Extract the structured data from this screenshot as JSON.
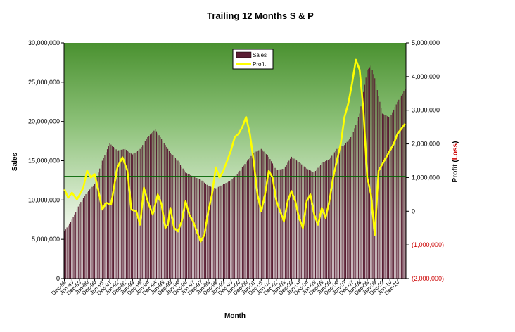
{
  "chart_data": {
    "type": "bar",
    "title": "Trailing 12 Months S & P",
    "xlabel": "Month",
    "ylabel": "Sales",
    "y2label": "Profit",
    "y2label_open": "Profit (",
    "y2label_loss": "Loss",
    "y2label_close": ")",
    "ylim": [
      0,
      30000000
    ],
    "y2lim": [
      -2000000,
      5000000
    ],
    "yticks": [
      "0",
      "5,000,000",
      "10,000,000",
      "15,000,000",
      "20,000,000",
      "25,000,000",
      "30,000,000"
    ],
    "y2ticks": [
      "(2,000,000)",
      "(1,000,000)",
      "0",
      "1,000,000",
      "2,000,000",
      "3,000,000",
      "4,000,000",
      "5,000,000"
    ],
    "x_tick_labels": [
      "Dec-88",
      "Jun-89",
      "Dec-89",
      "Jun-90",
      "Dec-90",
      "Jun-91",
      "Dec-91",
      "Jun-92",
      "Dec-92",
      "Jun-93",
      "Dec-93",
      "Jun-94",
      "Dec-94",
      "Jun-95",
      "Dec-95",
      "Jun-96",
      "Dec-96",
      "Jun-97",
      "Dec-97",
      "Jun-98",
      "Dec-98",
      "Jun-99",
      "Dec-99",
      "Jun-00",
      "Dec-00",
      "Jun-01",
      "Dec-01",
      "Jun-02",
      "Dec-02",
      "Jun-03",
      "Dec-03",
      "Jun-04",
      "Dec-04",
      "Jun-05",
      "Dec-05",
      "Jun-06",
      "Dec-06",
      "Jun-07",
      "Dec-07",
      "Jun-08",
      "Dec-08",
      "Jun-09",
      "Dec-09",
      "Jun-10",
      "Dec-10"
    ],
    "reference_line": 13000000,
    "legend": {
      "position": "top-center",
      "entries": [
        "Sales",
        "Profit"
      ]
    },
    "colors": {
      "sales": "#5a1e34",
      "profit": "#ffff00",
      "reference": "#006400",
      "loss": "#cc0000"
    },
    "series": [
      {
        "name": "Sales",
        "kind": "bar",
        "axis": "left",
        "anchors": [
          [
            0,
            6000000
          ],
          [
            6,
            7500000
          ],
          [
            12,
            9500000
          ],
          [
            18,
            11000000
          ],
          [
            24,
            12000000
          ],
          [
            30,
            15000000
          ],
          [
            36,
            17200000
          ],
          [
            42,
            16300000
          ],
          [
            48,
            16500000
          ],
          [
            54,
            15800000
          ],
          [
            60,
            16500000
          ],
          [
            66,
            18000000
          ],
          [
            72,
            19000000
          ],
          [
            78,
            17500000
          ],
          [
            84,
            16000000
          ],
          [
            90,
            15000000
          ],
          [
            96,
            13500000
          ],
          [
            102,
            13000000
          ],
          [
            108,
            12600000
          ],
          [
            114,
            11800000
          ],
          [
            120,
            11500000
          ],
          [
            126,
            12000000
          ],
          [
            132,
            12500000
          ],
          [
            138,
            13500000
          ],
          [
            144,
            14800000
          ],
          [
            150,
            16000000
          ],
          [
            156,
            16500000
          ],
          [
            162,
            15500000
          ],
          [
            168,
            13800000
          ],
          [
            174,
            14000000
          ],
          [
            180,
            15500000
          ],
          [
            186,
            14800000
          ],
          [
            192,
            14000000
          ],
          [
            198,
            13500000
          ],
          [
            204,
            14700000
          ],
          [
            210,
            15200000
          ],
          [
            216,
            16500000
          ],
          [
            222,
            17000000
          ],
          [
            228,
            18200000
          ],
          [
            234,
            21000000
          ],
          [
            240,
            26500000
          ],
          [
            243,
            27100000
          ],
          [
            246,
            25500000
          ],
          [
            252,
            21000000
          ],
          [
            258,
            20500000
          ],
          [
            264,
            22500000
          ],
          [
            270,
            24100000
          ]
        ]
      },
      {
        "name": "Profit",
        "kind": "line",
        "axis": "right",
        "anchors": [
          [
            0,
            650000
          ],
          [
            3,
            400000
          ],
          [
            6,
            550000
          ],
          [
            10,
            350000
          ],
          [
            15,
            700000
          ],
          [
            18,
            1200000
          ],
          [
            21,
            1000000
          ],
          [
            24,
            1100000
          ],
          [
            27,
            600000
          ],
          [
            30,
            50000
          ],
          [
            33,
            250000
          ],
          [
            37,
            200000
          ],
          [
            42,
            1300000
          ],
          [
            46,
            1600000
          ],
          [
            50,
            1200000
          ],
          [
            53,
            50000
          ],
          [
            57,
            0
          ],
          [
            60,
            -400000
          ],
          [
            63,
            700000
          ],
          [
            66,
            300000
          ],
          [
            70,
            -100000
          ],
          [
            74,
            500000
          ],
          [
            77,
            200000
          ],
          [
            80,
            -500000
          ],
          [
            82,
            -400000
          ],
          [
            84,
            100000
          ],
          [
            87,
            -500000
          ],
          [
            90,
            -600000
          ],
          [
            93,
            -300000
          ],
          [
            96,
            300000
          ],
          [
            99,
            -100000
          ],
          [
            102,
            -300000
          ],
          [
            105,
            -600000
          ],
          [
            108,
            -900000
          ],
          [
            111,
            -700000
          ],
          [
            114,
            0
          ],
          [
            117,
            500000
          ],
          [
            120,
            1300000
          ],
          [
            123,
            1000000
          ],
          [
            126,
            1200000
          ],
          [
            129,
            1500000
          ],
          [
            132,
            1800000
          ],
          [
            135,
            2200000
          ],
          [
            138,
            2300000
          ],
          [
            141,
            2500000
          ],
          [
            144,
            2800000
          ],
          [
            147,
            2300000
          ],
          [
            150,
            1500000
          ],
          [
            153,
            500000
          ],
          [
            156,
            0
          ],
          [
            159,
            500000
          ],
          [
            162,
            1200000
          ],
          [
            165,
            1000000
          ],
          [
            168,
            300000
          ],
          [
            171,
            0
          ],
          [
            174,
            -300000
          ],
          [
            177,
            300000
          ],
          [
            180,
            600000
          ],
          [
            183,
            300000
          ],
          [
            186,
            -200000
          ],
          [
            189,
            -500000
          ],
          [
            192,
            300000
          ],
          [
            195,
            500000
          ],
          [
            198,
            -100000
          ],
          [
            201,
            -400000
          ],
          [
            204,
            100000
          ],
          [
            207,
            -200000
          ],
          [
            210,
            300000
          ],
          [
            213,
            1000000
          ],
          [
            216,
            1500000
          ],
          [
            219,
            2000000
          ],
          [
            222,
            2800000
          ],
          [
            225,
            3200000
          ],
          [
            228,
            3800000
          ],
          [
            231,
            4500000
          ],
          [
            234,
            4200000
          ],
          [
            237,
            3000000
          ],
          [
            240,
            1000000
          ],
          [
            243,
            500000
          ],
          [
            246,
            -700000
          ],
          [
            249,
            1200000
          ],
          [
            252,
            1400000
          ],
          [
            255,
            1600000
          ],
          [
            258,
            1800000
          ],
          [
            261,
            2000000
          ],
          [
            264,
            2300000
          ],
          [
            270,
            2600000
          ]
        ]
      }
    ]
  }
}
